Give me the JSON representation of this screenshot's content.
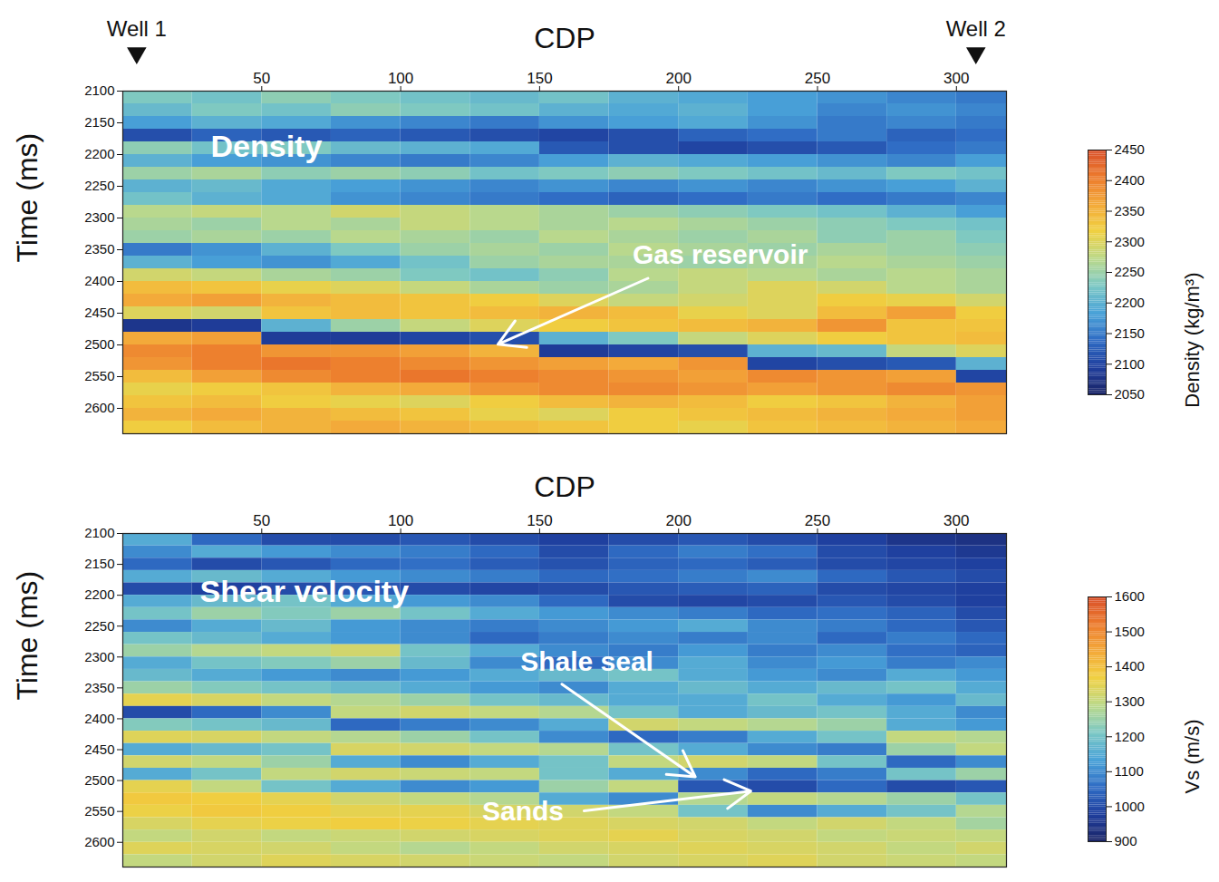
{
  "chart_data": [
    {
      "type": "heatmap",
      "title": "Density",
      "xlabel": "CDP",
      "ylabel": "Time (ms)",
      "xlim": [
        0,
        318
      ],
      "ylim": [
        2100,
        2640
      ],
      "xticks": [
        50,
        100,
        150,
        200,
        250,
        300
      ],
      "yticks": [
        2100,
        2150,
        2200,
        2250,
        2300,
        2350,
        2400,
        2450,
        2500,
        2550,
        2600
      ],
      "x_edges": [
        0,
        25,
        50,
        75,
        100,
        125,
        150,
        175,
        200,
        225,
        250,
        275,
        300,
        318
      ],
      "y_edges": [
        2100,
        2120,
        2140,
        2160,
        2180,
        2200,
        2220,
        2240,
        2260,
        2280,
        2300,
        2320,
        2340,
        2360,
        2380,
        2400,
        2420,
        2440,
        2460,
        2480,
        2500,
        2520,
        2540,
        2560,
        2580,
        2600,
        2620,
        2640
      ],
      "cells": [
        [
          2230,
          2220,
          2240,
          2230,
          2220,
          2210,
          2220,
          2200,
          2190,
          2180,
          2170,
          2160,
          2150
        ],
        [
          2210,
          2230,
          2220,
          2240,
          2230,
          2220,
          2200,
          2190,
          2200,
          2180,
          2160,
          2170,
          2160
        ],
        [
          2180,
          2200,
          2190,
          2170,
          2160,
          2150,
          2170,
          2180,
          2190,
          2170,
          2150,
          2160,
          2150
        ],
        [
          2110,
          2130,
          2120,
          2130,
          2120,
          2110,
          2100,
          2110,
          2130,
          2140,
          2150,
          2130,
          2140
        ],
        [
          2240,
          2220,
          2230,
          2210,
          2200,
          2190,
          2120,
          2110,
          2100,
          2110,
          2120,
          2140,
          2150
        ],
        [
          2200,
          2180,
          2170,
          2160,
          2150,
          2160,
          2180,
          2200,
          2190,
          2180,
          2170,
          2160,
          2180
        ],
        [
          2250,
          2260,
          2240,
          2250,
          2240,
          2220,
          2230,
          2240,
          2230,
          2220,
          2210,
          2230,
          2220
        ],
        [
          2200,
          2210,
          2190,
          2180,
          2170,
          2160,
          2170,
          2160,
          2170,
          2160,
          2170,
          2180,
          2200
        ],
        [
          2220,
          2200,
          2190,
          2170,
          2160,
          2150,
          2140,
          2130,
          2140,
          2150,
          2140,
          2150,
          2160
        ],
        [
          2270,
          2280,
          2270,
          2290,
          2280,
          2270,
          2260,
          2250,
          2240,
          2230,
          2220,
          2200,
          2180
        ],
        [
          2260,
          2250,
          2270,
          2260,
          2280,
          2270,
          2260,
          2270,
          2260,
          2250,
          2240,
          2230,
          2220
        ],
        [
          2250,
          2260,
          2250,
          2270,
          2260,
          2250,
          2270,
          2260,
          2250,
          2260,
          2240,
          2250,
          2230
        ],
        [
          2150,
          2170,
          2200,
          2230,
          2250,
          2260,
          2250,
          2270,
          2260,
          2250,
          2260,
          2250,
          2240
        ],
        [
          2200,
          2180,
          2170,
          2190,
          2220,
          2250,
          2260,
          2260,
          2250,
          2260,
          2270,
          2260,
          2250
        ],
        [
          2290,
          2280,
          2260,
          2250,
          2230,
          2220,
          2240,
          2270,
          2280,
          2270,
          2260,
          2270,
          2260
        ],
        [
          2340,
          2330,
          2310,
          2300,
          2280,
          2260,
          2250,
          2260,
          2280,
          2300,
          2290,
          2270,
          2260
        ],
        [
          2360,
          2370,
          2350,
          2340,
          2330,
          2320,
          2300,
          2280,
          2290,
          2300,
          2320,
          2310,
          2290
        ],
        [
          2300,
          2290,
          2330,
          2340,
          2330,
          2340,
          2350,
          2340,
          2310,
          2300,
          2340,
          2370,
          2320
        ],
        [
          2080,
          2090,
          2200,
          2250,
          2280,
          2300,
          2320,
          2330,
          2340,
          2350,
          2380,
          2330,
          2330
        ],
        [
          2360,
          2370,
          2090,
          2090,
          2100,
          2110,
          2200,
          2230,
          2280,
          2300,
          2320,
          2330,
          2340
        ],
        [
          2390,
          2400,
          2380,
          2380,
          2370,
          2350,
          2090,
          2100,
          2110,
          2200,
          2210,
          2280,
          2300
        ],
        [
          2380,
          2400,
          2410,
          2400,
          2390,
          2380,
          2370,
          2360,
          2380,
          2100,
          2110,
          2120,
          2200
        ],
        [
          2340,
          2370,
          2390,
          2400,
          2410,
          2400,
          2390,
          2380,
          2370,
          2390,
          2380,
          2370,
          2100
        ],
        [
          2310,
          2320,
          2330,
          2350,
          2360,
          2380,
          2390,
          2390,
          2380,
          2370,
          2380,
          2390,
          2380
        ],
        [
          2330,
          2340,
          2320,
          2310,
          2300,
          2320,
          2340,
          2350,
          2340,
          2320,
          2330,
          2350,
          2370
        ],
        [
          2350,
          2360,
          2350,
          2340,
          2330,
          2310,
          2300,
          2320,
          2330,
          2340,
          2350,
          2360,
          2370
        ],
        [
          2320,
          2340,
          2350,
          2360,
          2350,
          2340,
          2330,
          2320,
          2310,
          2330,
          2340,
          2350,
          2360
        ]
      ],
      "colorbar": {
        "label": "Density (kg/m³)",
        "range": [
          2050,
          2450
        ],
        "ticks": [
          2050,
          2100,
          2150,
          2200,
          2250,
          2300,
          2350,
          2400,
          2450
        ]
      },
      "wells": [
        {
          "name": "Well 1",
          "x": 5
        },
        {
          "name": "Well 2",
          "x": 307
        }
      ],
      "annotations": [
        {
          "text": "Gas reservoir",
          "x": 215,
          "y": 2359,
          "arrow_from": [
            189,
            2395
          ],
          "arrow_to": [
            135,
            2499
          ]
        }
      ]
    },
    {
      "type": "heatmap",
      "title": "Shear velocity",
      "xlabel": "CDP",
      "ylabel": "Time (ms)",
      "xlim": [
        0,
        318
      ],
      "ylim": [
        2100,
        2640
      ],
      "xticks": [
        50,
        100,
        150,
        200,
        250,
        300
      ],
      "yticks": [
        2100,
        2150,
        2200,
        2250,
        2300,
        2350,
        2400,
        2450,
        2500,
        2550,
        2600
      ],
      "x_edges": [
        0,
        25,
        50,
        75,
        100,
        125,
        150,
        175,
        200,
        225,
        250,
        275,
        300,
        318
      ],
      "y_edges": [
        2100,
        2120,
        2140,
        2160,
        2180,
        2200,
        2220,
        2240,
        2260,
        2280,
        2300,
        2320,
        2340,
        2360,
        2380,
        2400,
        2420,
        2440,
        2460,
        2480,
        2500,
        2520,
        2540,
        2560,
        2580,
        2600,
        2620,
        2640
      ],
      "cells": [
        [
          1150,
          1050,
          1000,
          1000,
          1020,
          1000,
          980,
          1000,
          1020,
          1000,
          980,
          950,
          940
        ],
        [
          1100,
          1150,
          1120,
          1100,
          1080,
          1050,
          1000,
          1050,
          1080,
          1060,
          1000,
          980,
          960
        ],
        [
          1050,
          1000,
          1020,
          1050,
          1060,
          1030,
          1010,
          1040,
          1050,
          1030,
          1000,
          990,
          980
        ],
        [
          1150,
          1180,
          1150,
          1120,
          1100,
          1080,
          1050,
          1060,
          1080,
          1100,
          1050,
          1020,
          1000
        ],
        [
          1000,
          980,
          1000,
          1020,
          1000,
          990,
          1000,
          1020,
          1030,
          1040,
          1000,
          990,
          980
        ],
        [
          1150,
          1180,
          1200,
          1150,
          1120,
          1100,
          1050,
          1000,
          990,
          1000,
          1020,
          1000,
          980
        ],
        [
          1200,
          1250,
          1220,
          1250,
          1200,
          1150,
          1120,
          1100,
          1080,
          1050,
          1060,
          1040,
          1000
        ],
        [
          1100,
          1150,
          1180,
          1120,
          1100,
          1080,
          1100,
          1120,
          1150,
          1100,
          1080,
          1050,
          1020
        ],
        [
          1200,
          1180,
          1150,
          1120,
          1100,
          1050,
          1080,
          1100,
          1080,
          1100,
          1050,
          1080,
          1050
        ],
        [
          1250,
          1280,
          1300,
          1320,
          1200,
          1150,
          1100,
          1080,
          1120,
          1080,
          1100,
          1060,
          1040
        ],
        [
          1150,
          1200,
          1220,
          1250,
          1180,
          1100,
          1050,
          1100,
          1150,
          1100,
          1120,
          1080,
          1100
        ],
        [
          1180,
          1150,
          1120,
          1100,
          1120,
          1150,
          1180,
          1200,
          1150,
          1120,
          1100,
          1150,
          1120
        ],
        [
          1250,
          1220,
          1200,
          1180,
          1150,
          1120,
          1100,
          1150,
          1180,
          1150,
          1180,
          1200,
          1150
        ],
        [
          1350,
          1330,
          1300,
          1280,
          1250,
          1200,
          1180,
          1150,
          1150,
          1200,
          1150,
          1120,
          1180
        ],
        [
          1000,
          1050,
          1100,
          1300,
          1320,
          1300,
          1280,
          1200,
          1150,
          1180,
          1200,
          1150,
          1100
        ],
        [
          1220,
          1200,
          1180,
          1050,
          1080,
          1100,
          1150,
          1320,
          1300,
          1280,
          1250,
          1150,
          1120
        ],
        [
          1340,
          1330,
          1300,
          1280,
          1250,
          1200,
          1100,
          1050,
          1080,
          1150,
          1200,
          1300,
          1280
        ],
        [
          1150,
          1180,
          1200,
          1330,
          1320,
          1300,
          1280,
          1200,
          1150,
          1100,
          1080,
          1250,
          1300
        ],
        [
          1320,
          1300,
          1250,
          1150,
          1100,
          1150,
          1200,
          1300,
          1320,
          1300,
          1200,
          1050,
          1100
        ],
        [
          1150,
          1200,
          1300,
          1320,
          1310,
          1300,
          1200,
          1150,
          1100,
          1050,
          1080,
          1200,
          1250
        ],
        [
          1350,
          1300,
          1200,
          1150,
          1100,
          1120,
          1250,
          1300,
          1020,
          1000,
          1050,
          1000,
          1020
        ],
        [
          1380,
          1370,
          1350,
          1320,
          1300,
          1280,
          1150,
          1100,
          1280,
          1300,
          1280,
          1250,
          1200
        ],
        [
          1360,
          1380,
          1370,
          1350,
          1350,
          1330,
          1320,
          1300,
          1200,
          1100,
          1150,
          1200,
          1280
        ],
        [
          1330,
          1350,
          1360,
          1370,
          1360,
          1350,
          1340,
          1330,
          1320,
          1300,
          1320,
          1300,
          1260
        ],
        [
          1300,
          1320,
          1300,
          1310,
          1320,
          1330,
          1340,
          1350,
          1330,
          1320,
          1300,
          1310,
          1300
        ],
        [
          1340,
          1330,
          1320,
          1300,
          1280,
          1300,
          1320,
          1330,
          1340,
          1330,
          1320,
          1300,
          1320
        ],
        [
          1300,
          1320,
          1340,
          1330,
          1320,
          1310,
          1300,
          1320,
          1330,
          1340,
          1320,
          1310,
          1300
        ]
      ],
      "colorbar": {
        "label": "Vs (m/s)",
        "range": [
          900,
          1600
        ],
        "ticks": [
          900,
          1000,
          1100,
          1200,
          1300,
          1400,
          1500,
          1600
        ]
      },
      "annotations": [
        {
          "text": "Shale seal",
          "x": 167,
          "y": 2308,
          "arrow_from": [
            158,
            2344
          ],
          "arrow_to": [
            206,
            2494
          ]
        },
        {
          "text": "Sands",
          "x": 144,
          "y": 2551,
          "arrow_from": [
            166,
            2549
          ],
          "arrow_to": [
            226,
            2517
          ]
        }
      ]
    }
  ]
}
